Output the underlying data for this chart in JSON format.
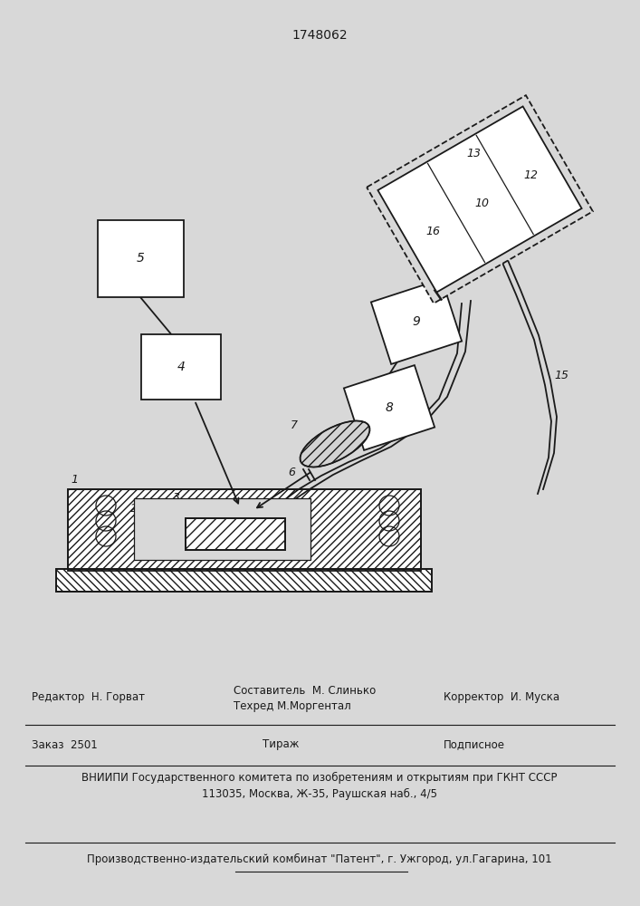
{
  "title": "1748062",
  "title_fontsize": 10,
  "bg_color": "#d8d8d8",
  "line_color": "#1a1a1a",
  "footer_line1_left": "Редактор  Н. Горват",
  "footer_line1_mid1": "Составитель  М. Слинько",
  "footer_line1_mid2": "Техред М.Моргентал",
  "footer_line1_right": "Корректор  И. Муска",
  "footer_line2_left": "Заказ  2501",
  "footer_line2_mid": "Тираж",
  "footer_line2_right": "Подписное",
  "footer_line3": "ВНИИПИ Государственного комитета по изобретениям и открытиям при ГКНТ СССР",
  "footer_line4": "113035, Москва, Ж-35, Раушская наб., 4/5",
  "footer_line5": "Производственно-издательский комбинат \"Патент\", г. Ужгород, ул.Гагарина, 101"
}
